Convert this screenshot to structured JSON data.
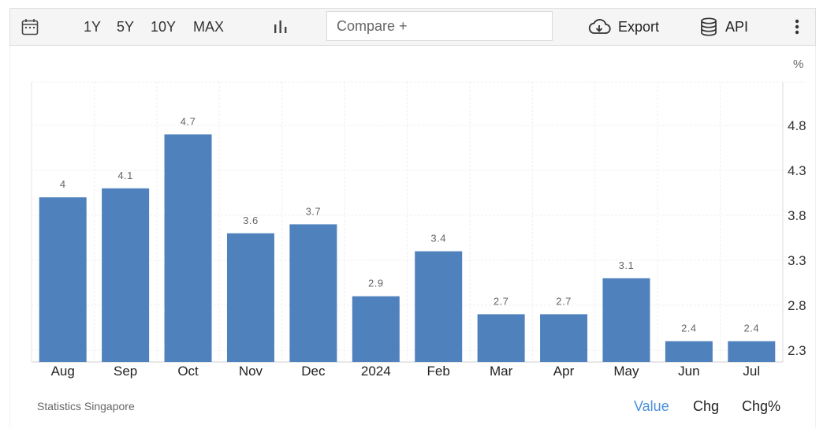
{
  "toolbar": {
    "ranges": [
      "1Y",
      "5Y",
      "10Y",
      "MAX"
    ],
    "compare_placeholder": "Compare +",
    "export_label": "Export",
    "api_label": "API"
  },
  "colors": {
    "bar": "#4f81bd",
    "active_tab": "#4a90d9",
    "grid": "#e6e6e6"
  },
  "chart_data": {
    "type": "bar",
    "categories": [
      "Aug",
      "Sep",
      "Oct",
      "Nov",
      "Dec",
      "2024",
      "Feb",
      "Mar",
      "Apr",
      "May",
      "Jun",
      "Jul"
    ],
    "values": [
      4,
      4.1,
      4.7,
      3.6,
      3.7,
      2.9,
      3.4,
      2.7,
      2.7,
      3.1,
      2.4,
      2.4
    ],
    "data_labels": [
      "4",
      "4.1",
      "4.7",
      "3.6",
      "3.7",
      "2.9",
      "3.4",
      "2.7",
      "2.7",
      "3.1",
      "2.4",
      "2.4"
    ],
    "y_ticks": [
      "2.3",
      "2.8",
      "3.3",
      "3.8",
      "4.3",
      "4.8"
    ],
    "y_unit": "%",
    "ylim": [
      2.2,
      5.3
    ],
    "y_axis_position": "right",
    "grid": true
  },
  "footer": {
    "source": "Statistics Singapore",
    "tabs": [
      "Value",
      "Chg",
      "Chg%"
    ],
    "active_tab": "Value"
  }
}
